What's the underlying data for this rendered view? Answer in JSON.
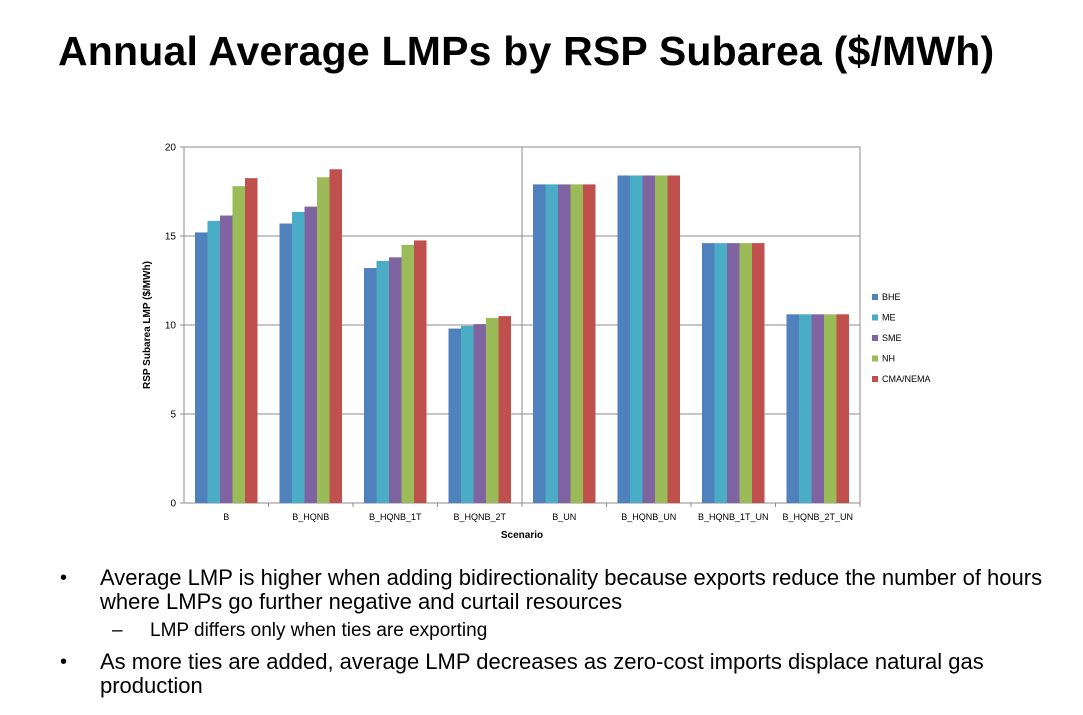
{
  "slide": {
    "title": "Annual Average LMPs by RSP Subarea ($/MWh)",
    "bullets": [
      {
        "marker": "•",
        "text": "Average LMP is higher when adding bidirectionality because exports reduce the number of hours where LMPs go further negative and curtail resources",
        "sub": [
          {
            "marker": "–",
            "text": "LMP differs only when ties are exporting"
          }
        ]
      },
      {
        "marker": "•",
        "text": "As more ties are added, average LMP decreases as zero-cost imports displace natural gas production",
        "sub": []
      }
    ]
  },
  "chart_data": {
    "type": "bar",
    "title": "",
    "xlabel": "Scenario",
    "ylabel": "RSP Subarea LMP ($/MWh)",
    "ylim": [
      0,
      20
    ],
    "yticks": [
      0,
      5,
      10,
      15,
      20
    ],
    "grid": true,
    "legend_position": "right",
    "divider_after_category": 3,
    "categories": [
      "B",
      "B_HQNB",
      "B_HQNB_1T",
      "B_HQNB_2T",
      "B_UN",
      "B_HQNB_UN",
      "B_HQNB_1T_UN",
      "B_HQNB_2T_UN"
    ],
    "series": [
      {
        "name": "BHE",
        "color": "#4F81BD",
        "values": [
          15.2,
          15.7,
          13.2,
          9.8,
          17.9,
          18.4,
          14.6,
          10.6
        ]
      },
      {
        "name": "ME",
        "color": "#4BACC6",
        "values": [
          15.85,
          16.35,
          13.6,
          9.95,
          17.9,
          18.4,
          14.6,
          10.6
        ]
      },
      {
        "name": "SME",
        "color": "#8064A2",
        "values": [
          16.15,
          16.65,
          13.8,
          10.05,
          17.9,
          18.4,
          14.6,
          10.6
        ]
      },
      {
        "name": "NH",
        "color": "#9BBB59",
        "values": [
          17.8,
          18.3,
          14.5,
          10.4,
          17.9,
          18.4,
          14.6,
          10.6
        ]
      },
      {
        "name": "CMA/NEMA",
        "color": "#C0504D",
        "values": [
          18.25,
          18.75,
          14.75,
          10.5,
          17.9,
          18.4,
          14.6,
          10.6
        ]
      }
    ]
  }
}
